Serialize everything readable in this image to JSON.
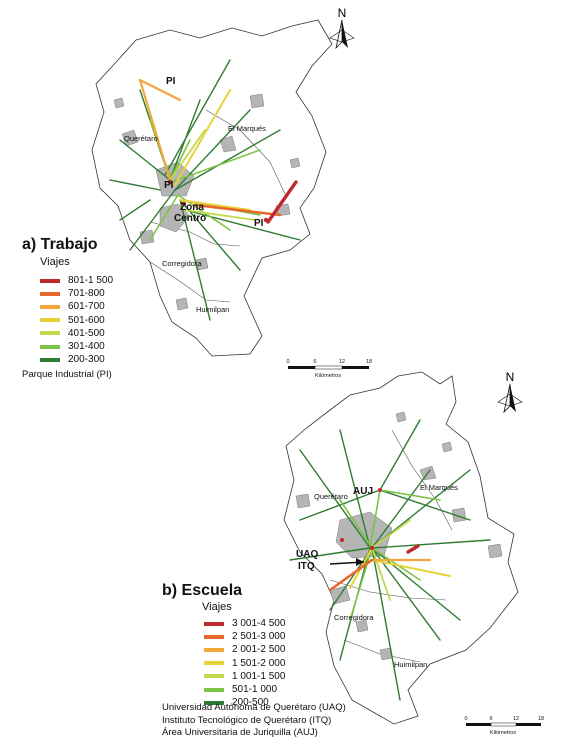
{
  "map_a": {
    "title": "a) Trabajo",
    "subtitle": "Viajes",
    "classes": [
      {
        "label": "801-1 500",
        "color": "#c0282d"
      },
      {
        "label": "701-800",
        "color": "#e8672a"
      },
      {
        "label": "601-700",
        "color": "#f2a83a"
      },
      {
        "label": "501-600",
        "color": "#e8d23a"
      },
      {
        "label": "401-500",
        "color": "#c2d94a"
      },
      {
        "label": "301-400",
        "color": "#7cc443"
      },
      {
        "label": "200-300",
        "color": "#2e7d32"
      }
    ],
    "note": "Parque Industrial (PI)",
    "places": {
      "queretaro": "Querétaro",
      "el_marques": "El Marqués",
      "corregidora": "Corregidora",
      "huimilpan": "Huimilpan",
      "zona_centro": "Zona\nCentro",
      "pi_1": "PI",
      "pi_2": "PI",
      "pi_3": "PI"
    },
    "north": "N",
    "scale": {
      "ticks": [
        "0",
        "6",
        "12",
        "18"
      ],
      "unit": "Kilómetros"
    }
  },
  "map_b": {
    "title": "b) Escuela",
    "subtitle": "Viajes",
    "classes": [
      {
        "label": "3 001-4 500",
        "color": "#c0282d"
      },
      {
        "label": "2 501-3 000",
        "color": "#e8672a"
      },
      {
        "label": "2 001-2 500",
        "color": "#f2a83a"
      },
      {
        "label": "1 501-2 000",
        "color": "#e8d23a"
      },
      {
        "label": "1 001-1 500",
        "color": "#c2d94a"
      },
      {
        "label": "501-1 000",
        "color": "#7cc443"
      },
      {
        "label": "200-500",
        "color": "#2e7d32"
      }
    ],
    "notes": [
      "Universidad Autónoma de Querétaro (UAQ)",
      "Instituto Tecnológico de Querétaro (ITQ)",
      "Área Universitaria de Juriquilla (AUJ)"
    ],
    "places": {
      "queretaro": "Querétaro",
      "el_marques": "El Marqués",
      "corregidora": "Corregidora",
      "huimilpan": "Huimilpan",
      "auj": "AUJ",
      "uaq": "UAQ",
      "itq": "ITQ"
    },
    "north": "N",
    "scale": {
      "ticks": [
        "0",
        "6",
        "12",
        "18"
      ],
      "unit": "Kilómetros"
    }
  }
}
